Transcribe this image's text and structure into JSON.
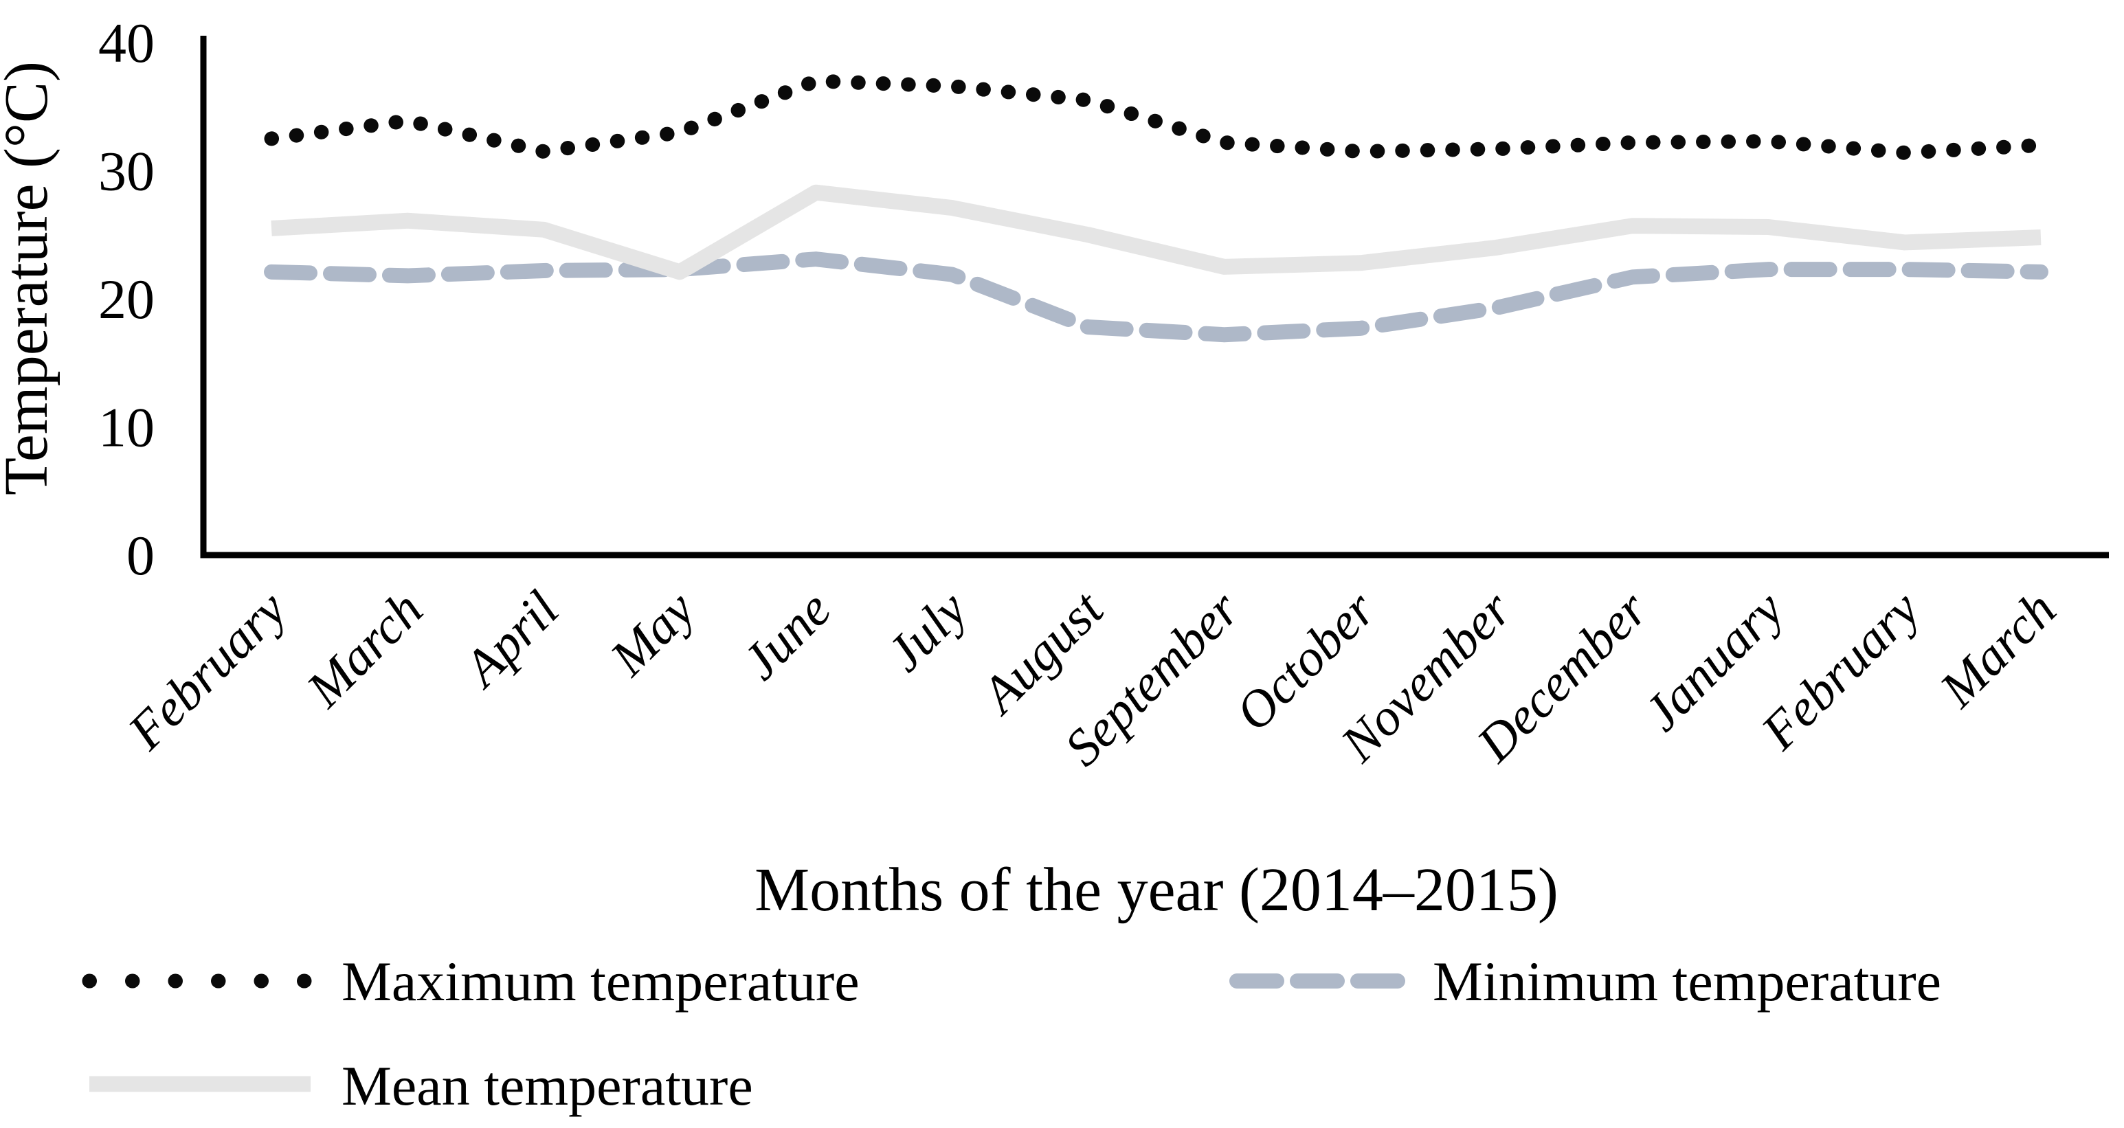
{
  "page": {
    "background": "#ffffff",
    "text_color": "#000000",
    "axis_color": "#000000"
  },
  "chart_data": {
    "type": "line",
    "title": "",
    "xlabel": "Months of the year (2014–2015)",
    "ylabel": "Temperature (°C)",
    "ylim": [
      0,
      40
    ],
    "yticks": [
      "0",
      "10",
      "20",
      "30",
      "40"
    ],
    "grid": false,
    "legend_position": "bottom",
    "categories": [
      "February",
      "March",
      "April",
      "May",
      "June",
      "July",
      "August",
      "September",
      "October",
      "November",
      "December",
      "January",
      "February",
      "March"
    ],
    "series": [
      {
        "name": "Maximum temperature",
        "key": "max",
        "style": "dotted",
        "color": "#0a0a0a",
        "z": 3,
        "values": [
          32.5,
          33.9,
          31.5,
          33.0,
          37.0,
          36.6,
          35.5,
          32.2,
          31.5,
          31.7,
          32.2,
          32.3,
          31.4,
          32.0
        ]
      },
      {
        "name": "Minimum temperature",
        "key": "min",
        "style": "dashed",
        "color": "#aeb8c8",
        "z": 1,
        "values": [
          22.1,
          21.8,
          22.2,
          22.3,
          23.1,
          21.9,
          17.8,
          17.2,
          17.7,
          19.3,
          21.7,
          22.3,
          22.3,
          22.1
        ]
      },
      {
        "name": "Mean temperature",
        "key": "mean",
        "style": "solid",
        "color": "#e5e5e5",
        "z": 2,
        "values": [
          25.5,
          26.1,
          25.4,
          22.1,
          28.3,
          27.1,
          25.0,
          22.5,
          22.8,
          24.0,
          25.7,
          25.6,
          24.4,
          24.8
        ]
      }
    ]
  }
}
